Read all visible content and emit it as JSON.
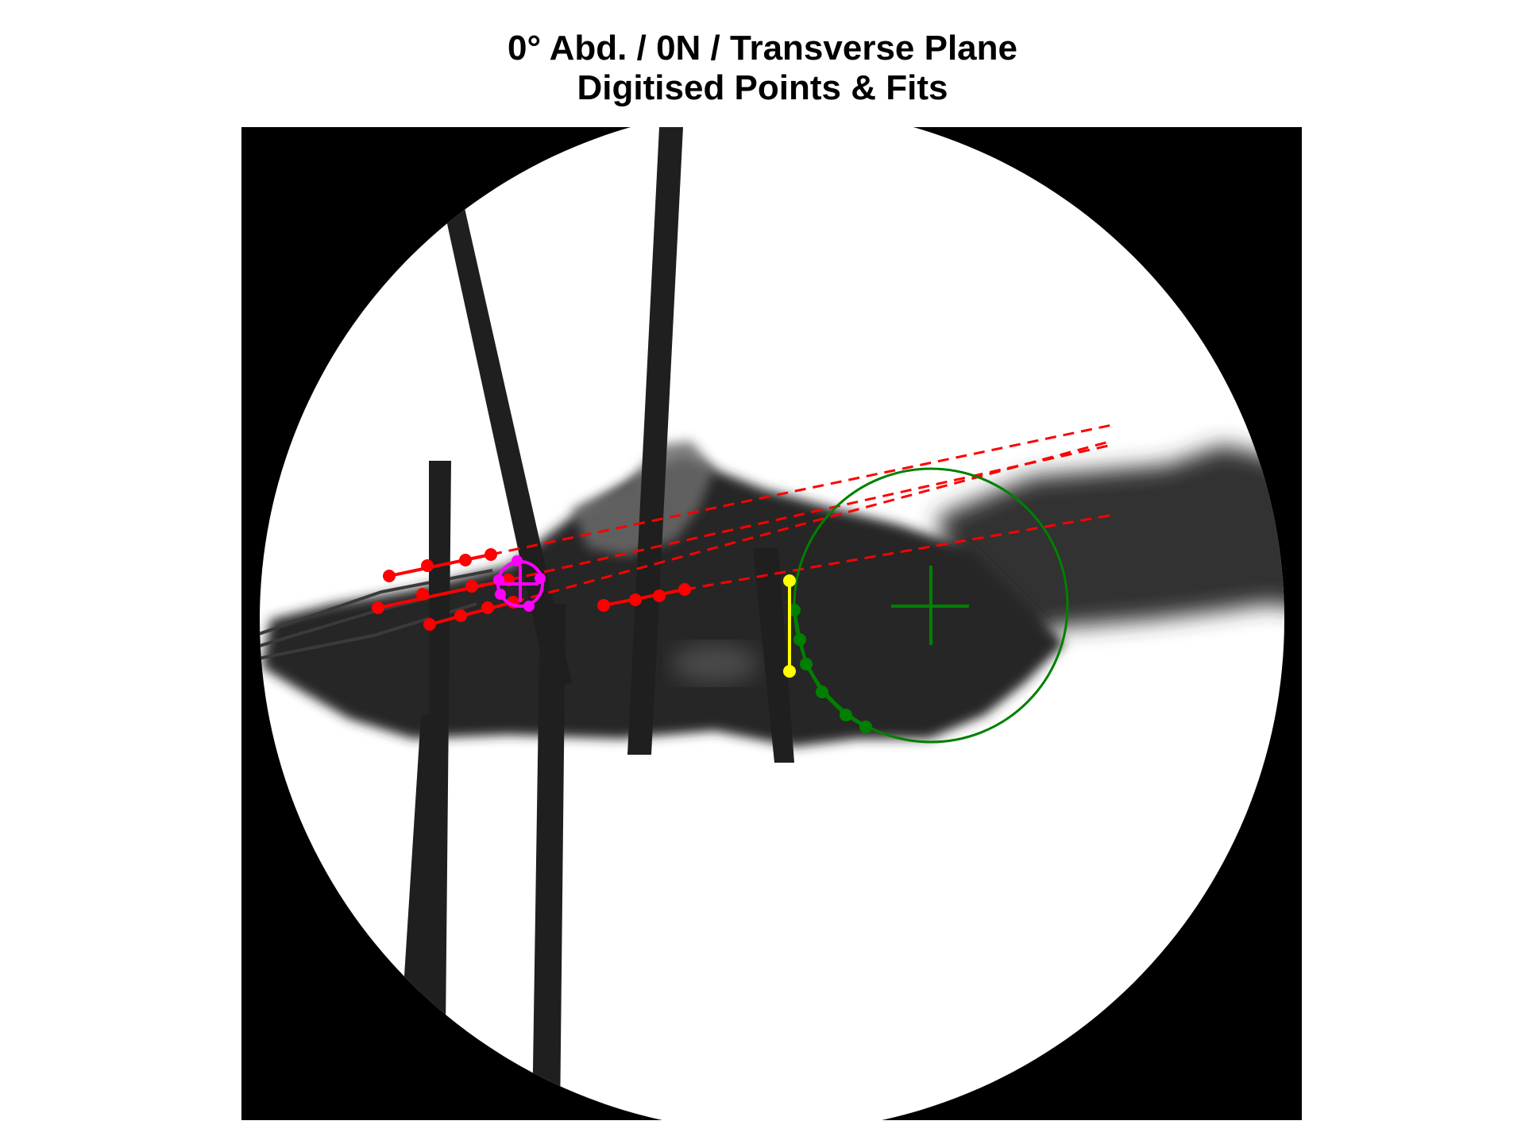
{
  "figure": {
    "title_line1": "0° Abd. / 0N / Transverse Plane",
    "title_line2": "Digitised Points & Fits"
  },
  "image": {
    "subject": "fluoroscopy x-ray of a shoulder specimen with fixation rods",
    "background_color": "#000000",
    "field_color": "#ffffff",
    "tissue_color": "#2a2a2a",
    "rod_color": "#1e1e1e"
  },
  "overlays": {
    "digitised_lines": {
      "color": "#ff0000",
      "style": "solid points with dashed extrapolated fits",
      "count": 4
    },
    "small_circle_fit": {
      "color": "#ff00ff",
      "icon": "crosshair-icon"
    },
    "large_circle_fit": {
      "color": "#008000",
      "icon": "crosshair-icon"
    },
    "reference_segment": {
      "color": "#ffff00"
    }
  }
}
